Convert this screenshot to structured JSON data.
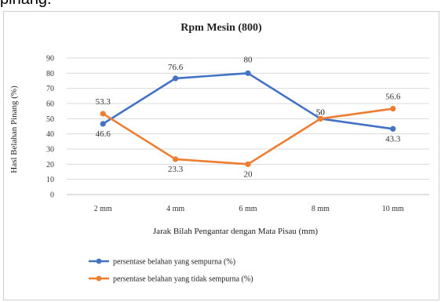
{
  "page": {
    "top_fragment": "pinang."
  },
  "chart_data": {
    "type": "line",
    "title": "Rpm Mesin (800)",
    "xlabel": "Jarak Bilah Pengantar dengan Mata Pisau (mm)",
    "ylabel": "Hasl Belahan Pinang (%)",
    "categories": [
      "2 mm",
      "4 mm",
      "6 mm",
      "8 mm",
      "10 mm"
    ],
    "ylim": [
      0,
      90
    ],
    "yticks": [
      0,
      10,
      20,
      30,
      40,
      50,
      60,
      70,
      80,
      90
    ],
    "grid": true,
    "legend_position": "bottom",
    "series": [
      {
        "name": "persentase belahan yang sempurna (%)",
        "color": "#4472c4",
        "values": [
          46.6,
          76.6,
          80,
          50,
          43.3
        ],
        "labels": [
          "46.6",
          "76.6",
          "80",
          "50",
          "43.3"
        ]
      },
      {
        "name": "persentase belahan yang tidak sempurna (%)",
        "color": "#ed7d31",
        "values": [
          53.3,
          23.3,
          20,
          50,
          56.6
        ],
        "labels": [
          "53.3",
          "23.3",
          "20",
          "50",
          "56.6"
        ]
      }
    ]
  }
}
